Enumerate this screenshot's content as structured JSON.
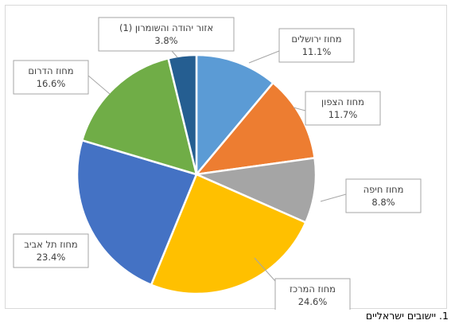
{
  "chart_data": {
    "type": "pie",
    "slices": [
      {
        "label": "מחוז ירושלים",
        "value": 11.1,
        "display": "11.1%",
        "color": "#5B9BD5"
      },
      {
        "label": "מחוז הצפון",
        "value": 11.7,
        "display": "11.7%",
        "color": "#ED7D31"
      },
      {
        "label": "מחוז חיפה",
        "value": 8.8,
        "display": "8.8%",
        "color": "#A5A5A5"
      },
      {
        "label": "מחוז המרכז",
        "value": 24.6,
        "display": "24.6%",
        "color": "#FFC000"
      },
      {
        "label": "מחוז תל אביב",
        "value": 23.4,
        "display": "23.4%",
        "color": "#4472C4"
      },
      {
        "label": "מחוז הדרום",
        "value": 16.6,
        "display": "16.6%",
        "color": "#70AD47"
      },
      {
        "label": "אזור יהודה והשומרון (1)",
        "value": 3.8,
        "display": "3.8%",
        "color": "#255E91"
      }
    ],
    "start_angle": "12 o'clock",
    "direction": "clockwise",
    "legend": "none",
    "data_labels": "callouts"
  },
  "footnote": "1. יישובים ישראליים"
}
